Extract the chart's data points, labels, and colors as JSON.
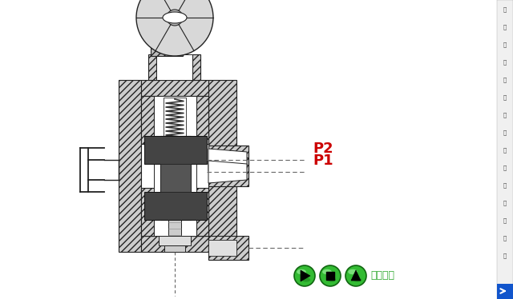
{
  "bg_color": "#ffffff",
  "p1_label": "P1",
  "p2_label": "P2",
  "p1_color": "#cc0000",
  "p2_color": "#cc0000",
  "btn_color_face": "#33bb33",
  "btn_color_edge": "#116611",
  "btn_label": "返回上頁",
  "btn_label_color": "#33aa33",
  "right_bar_color": "#1144aa",
  "right_text_color": "#cccccc",
  "line_color": "#222222",
  "hatch_fc": "#cccccc",
  "hatch_pattern": "////",
  "dark_spool": "#2a2a2a",
  "mid_spool": "#555555",
  "spring_color": "#333333",
  "white": "#ffffff",
  "light_gray": "#dddddd",
  "mid_gray": "#888888"
}
